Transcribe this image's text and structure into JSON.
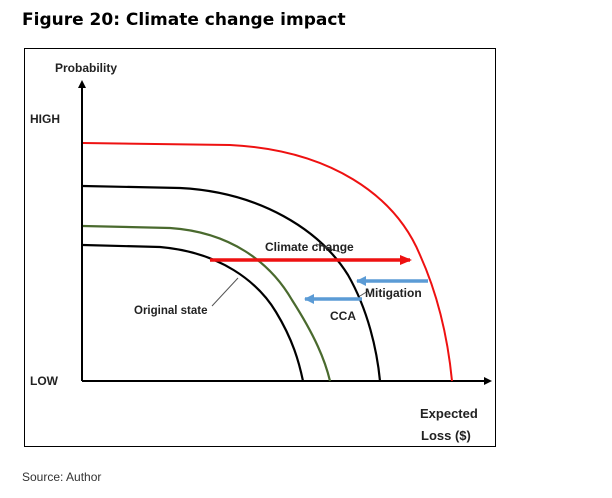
{
  "figure": {
    "title": "Figure 20: Climate change impact",
    "source": "Source: Author"
  },
  "diagram": {
    "y_axis_label": "Probability",
    "y_high": "HIGH",
    "y_low": "LOW",
    "x_axis_label_line1": "Expected",
    "x_axis_label_line2": "Loss ($)",
    "labels": {
      "climate_change": "Climate change",
      "mitigation": "Mitigation",
      "cca": "CCA",
      "original_state": "Original state"
    },
    "colors": {
      "climate_change": "#ee1111",
      "original_state": "#000000",
      "after_mitigation": "#000000",
      "after_cca": "#4a6a2e",
      "arrows": "#5b9bd5",
      "axes": "#000000"
    }
  }
}
